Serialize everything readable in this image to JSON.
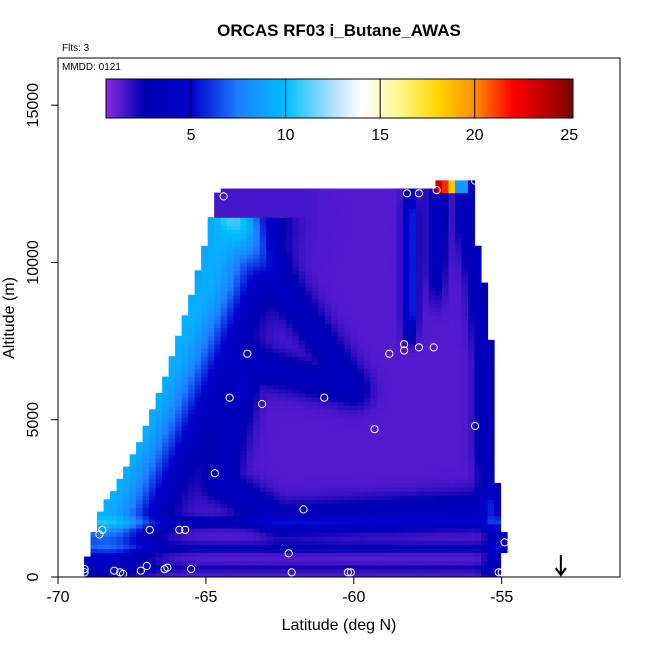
{
  "chart_data": {
    "type": "heatmap",
    "title": "ORCAS RF03 i_Butane_AWAS",
    "notes": {
      "flights": "Flts: 3",
      "date": "MMDD: 0121"
    },
    "xlabel": "Latitude (deg N)",
    "ylabel": "Altitude (m)",
    "xlim": [
      -70,
      -51
    ],
    "ylim": [
      0,
      16500
    ],
    "x_ticks": [
      -70,
      -65,
      -60,
      -55
    ],
    "x_tick_labels": [
      "-70",
      "-65",
      "-60",
      "-55"
    ],
    "y_ticks": [
      0,
      5000,
      10000,
      15000
    ],
    "y_tick_labels": [
      "0",
      "5000",
      "10000",
      "15000"
    ],
    "colorbar": {
      "min": 0.5,
      "max": 25.2,
      "ticks": [
        5,
        10,
        15,
        20,
        25
      ],
      "tick_labels": [
        "5",
        "10",
        "15",
        "20",
        "25"
      ],
      "stops": [
        {
          "v": 0.5,
          "color": "#8a2be2"
        },
        {
          "v": 2.5,
          "color": "#0000b0"
        },
        {
          "v": 5.0,
          "color": "#0000cd"
        },
        {
          "v": 7.5,
          "color": "#1e7fff"
        },
        {
          "v": 10.0,
          "color": "#00bfff"
        },
        {
          "v": 12.5,
          "color": "#b0e0ff"
        },
        {
          "v": 14.0,
          "color": "#ffffff"
        },
        {
          "v": 16.0,
          "color": "#fff68f"
        },
        {
          "v": 18.0,
          "color": "#ffd700"
        },
        {
          "v": 20.0,
          "color": "#ff8c00"
        },
        {
          "v": 22.0,
          "color": "#ff0000"
        },
        {
          "v": 24.0,
          "color": "#b00000"
        },
        {
          "v": 25.2,
          "color": "#800000"
        }
      ]
    },
    "domain_envelope": {
      "left_edge": [
        {
          "alt": 0,
          "lat": -69.2
        },
        {
          "alt": 2000,
          "lat": -68.6
        },
        {
          "alt": 4000,
          "lat": -67.4
        },
        {
          "alt": 6000,
          "lat": -66.5
        },
        {
          "alt": 8000,
          "lat": -65.8
        },
        {
          "alt": 10000,
          "lat": -65.2
        },
        {
          "alt": 12300,
          "lat": -64.6
        }
      ],
      "right_edge": [
        {
          "alt": 0,
          "lat": -55.0
        },
        {
          "alt": 1200,
          "lat": -54.9
        },
        {
          "alt": 4000,
          "lat": -55.3
        },
        {
          "alt": 7000,
          "lat": -55.3
        },
        {
          "alt": 9500,
          "lat": -55.6
        },
        {
          "alt": 11000,
          "lat": -55.9
        },
        {
          "alt": 12500,
          "lat": -55.9
        }
      ],
      "top_alt": 12300
    },
    "samples": [
      {
        "lat": -69.1,
        "alt": 250
      },
      {
        "lat": -69.1,
        "alt": 150
      },
      {
        "lat": -68.6,
        "alt": 1350
      },
      {
        "lat": -68.5,
        "alt": 1500
      },
      {
        "lat": -68.1,
        "alt": 200
      },
      {
        "lat": -67.9,
        "alt": 150
      },
      {
        "lat": -67.8,
        "alt": 100
      },
      {
        "lat": -67.2,
        "alt": 200
      },
      {
        "lat": -67.0,
        "alt": 350
      },
      {
        "lat": -66.9,
        "alt": 1500
      },
      {
        "lat": -66.4,
        "alt": 250
      },
      {
        "lat": -66.3,
        "alt": 300
      },
      {
        "lat": -65.9,
        "alt": 1500
      },
      {
        "lat": -65.5,
        "alt": 250
      },
      {
        "lat": -65.7,
        "alt": 1500
      },
      {
        "lat": -64.7,
        "alt": 3300
      },
      {
        "lat": -64.4,
        "alt": 12100
      },
      {
        "lat": -64.2,
        "alt": 5700
      },
      {
        "lat": -63.6,
        "alt": 7100
      },
      {
        "lat": -63.1,
        "alt": 5500
      },
      {
        "lat": -62.2,
        "alt": 750
      },
      {
        "lat": -62.1,
        "alt": 150
      },
      {
        "lat": -61.7,
        "alt": 2150
      },
      {
        "lat": -61.0,
        "alt": 5700
      },
      {
        "lat": -60.2,
        "alt": 150
      },
      {
        "lat": -60.1,
        "alt": 150
      },
      {
        "lat": -59.3,
        "alt": 4700
      },
      {
        "lat": -58.8,
        "alt": 7100
      },
      {
        "lat": -58.3,
        "alt": 7200
      },
      {
        "lat": -58.3,
        "alt": 7400
      },
      {
        "lat": -58.2,
        "alt": 12200
      },
      {
        "lat": -57.8,
        "alt": 7300
      },
      {
        "lat": -57.8,
        "alt": 12200
      },
      {
        "lat": -57.3,
        "alt": 7300
      },
      {
        "lat": -57.2,
        "alt": 12300
      },
      {
        "lat": -55.9,
        "alt": 4800
      },
      {
        "lat": -55.9,
        "alt": 12600
      },
      {
        "lat": -55.1,
        "alt": 150
      },
      {
        "lat": -55.0,
        "alt": 150
      },
      {
        "lat": -54.9,
        "alt": 1100
      }
    ],
    "marker": {
      "type": "arrow-down",
      "lat": -53.0,
      "alt_top": 700
    }
  }
}
